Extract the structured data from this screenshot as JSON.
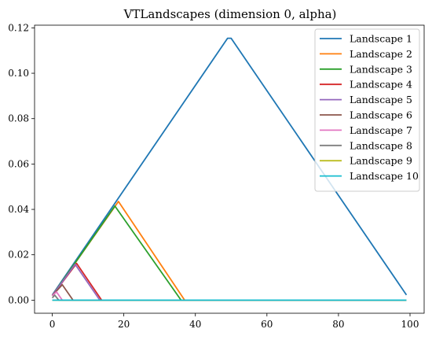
{
  "chart_data": {
    "type": "line",
    "title": "VTLandscapes (dimension 0, alpha)",
    "xlabel": "",
    "ylabel": "",
    "xlim": [
      -4.95,
      103.95
    ],
    "ylim": [
      -0.00577,
      0.12118
    ],
    "xticks": [
      0,
      20,
      40,
      60,
      80,
      100
    ],
    "xtick_labels": [
      "0",
      "20",
      "40",
      "60",
      "80",
      "100"
    ],
    "yticks": [
      0.0,
      0.02,
      0.04,
      0.06,
      0.08,
      0.1,
      0.12
    ],
    "ytick_labels": [
      "0.00",
      "0.02",
      "0.04",
      "0.06",
      "0.08",
      "0.10",
      "0.12"
    ],
    "grid": false,
    "legend_position": "top-right",
    "series": [
      {
        "name": "Landscape 1",
        "color": "#1f77b4",
        "x": [
          0,
          49,
          50,
          99
        ],
        "y": [
          0.0023,
          0.1154,
          0.1154,
          0.0023
        ]
      },
      {
        "name": "Landscape 2",
        "color": "#ff7f0e",
        "x": [
          0,
          18.5,
          37,
          99
        ],
        "y": [
          0.002,
          0.0435,
          0,
          0
        ]
      },
      {
        "name": "Landscape 3",
        "color": "#2ca02c",
        "x": [
          0,
          17.5,
          36,
          99
        ],
        "y": [
          0.002,
          0.0415,
          0,
          0
        ]
      },
      {
        "name": "Landscape 4",
        "color": "#d62728",
        "x": [
          0,
          6.8,
          13.8,
          99
        ],
        "y": [
          0.002,
          0.0162,
          0,
          0
        ]
      },
      {
        "name": "Landscape 5",
        "color": "#9467bd",
        "x": [
          0,
          6.4,
          13.3,
          99
        ],
        "y": [
          0.002,
          0.0158,
          0,
          0
        ]
      },
      {
        "name": "Landscape 6",
        "color": "#8c564b",
        "x": [
          0,
          2.8,
          5.8,
          99
        ],
        "y": [
          0.002,
          0.0068,
          0,
          0
        ]
      },
      {
        "name": "Landscape 7",
        "color": "#e377c2",
        "x": [
          0,
          1.2,
          2.8,
          99
        ],
        "y": [
          0.002,
          0.0036,
          0,
          0
        ]
      },
      {
        "name": "Landscape 8",
        "color": "#7f7f7f",
        "x": [
          0,
          0.7,
          1.8,
          99
        ],
        "y": [
          0.001,
          0.0022,
          0,
          0
        ]
      },
      {
        "name": "Landscape 9",
        "color": "#bcbd22",
        "x": [
          0,
          99
        ],
        "y": [
          0,
          0
        ]
      },
      {
        "name": "Landscape 10",
        "color": "#17becf",
        "x": [
          0,
          99
        ],
        "y": [
          0,
          0
        ]
      }
    ]
  }
}
